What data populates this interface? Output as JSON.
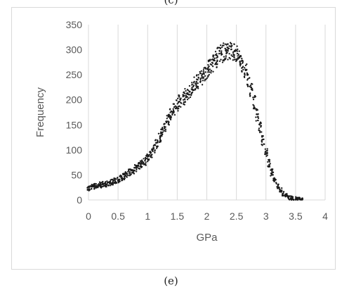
{
  "captions": {
    "top": "(c)",
    "bottom": "(e)"
  },
  "chart_data": {
    "type": "scatter",
    "title": "",
    "xlabel": "GPa",
    "ylabel": "Frequency",
    "xlim": [
      0,
      4
    ],
    "ylim": [
      0,
      350
    ],
    "xticks": [
      0,
      0.5,
      1,
      1.5,
      2,
      2.5,
      3,
      3.5,
      4
    ],
    "xtick_labels": [
      "0",
      "0.5",
      "1",
      "1.5",
      "2",
      "2.5",
      "3",
      "3.5",
      "4"
    ],
    "yticks": [
      0,
      50,
      100,
      150,
      200,
      250,
      300,
      350
    ],
    "ytick_labels": [
      "0",
      "50",
      "100",
      "150",
      "200",
      "250",
      "300",
      "350"
    ],
    "grid": "vertical",
    "legend": "none",
    "marker_color": "#1a1a1a",
    "gridline_color": "#d9d9d9",
    "series": [
      {
        "points": [
          [
            0.0,
            24
          ],
          [
            0.05,
            26
          ],
          [
            0.1,
            27
          ],
          [
            0.15,
            29
          ],
          [
            0.2,
            30
          ],
          [
            0.25,
            31
          ],
          [
            0.3,
            32
          ],
          [
            0.35,
            34
          ],
          [
            0.4,
            36
          ],
          [
            0.45,
            38
          ],
          [
            0.5,
            40
          ],
          [
            0.55,
            43
          ],
          [
            0.6,
            47
          ],
          [
            0.65,
            51
          ],
          [
            0.7,
            55
          ],
          [
            0.75,
            59
          ],
          [
            0.8,
            63
          ],
          [
            0.85,
            67
          ],
          [
            0.9,
            72
          ],
          [
            0.95,
            77
          ],
          [
            1.0,
            85
          ],
          [
            1.05,
            93
          ],
          [
            1.1,
            102
          ],
          [
            1.15,
            112
          ],
          [
            1.2,
            123
          ],
          [
            1.25,
            135
          ],
          [
            1.3,
            147
          ],
          [
            1.35,
            159
          ],
          [
            1.4,
            170
          ],
          [
            1.45,
            180
          ],
          [
            1.5,
            190
          ],
          [
            1.55,
            197
          ],
          [
            1.6,
            203
          ],
          [
            1.65,
            209
          ],
          [
            1.7,
            215
          ],
          [
            1.75,
            222
          ],
          [
            1.8,
            230
          ],
          [
            1.85,
            237
          ],
          [
            1.9,
            244
          ],
          [
            1.95,
            250
          ],
          [
            2.0,
            256
          ],
          [
            2.05,
            264
          ],
          [
            2.1,
            272
          ],
          [
            2.15,
            280
          ],
          [
            2.2,
            287
          ],
          [
            2.25,
            292
          ],
          [
            2.3,
            296
          ],
          [
            2.35,
            297
          ],
          [
            2.4,
            296
          ],
          [
            2.45,
            294
          ],
          [
            2.5,
            290
          ],
          [
            2.55,
            282
          ],
          [
            2.6,
            270
          ],
          [
            2.65,
            255
          ],
          [
            2.7,
            238
          ],
          [
            2.75,
            218
          ],
          [
            2.8,
            195
          ],
          [
            2.85,
            170
          ],
          [
            2.9,
            145
          ],
          [
            2.95,
            118
          ],
          [
            3.0,
            95
          ],
          [
            3.05,
            73
          ],
          [
            3.1,
            55
          ],
          [
            3.15,
            40
          ],
          [
            3.2,
            28
          ],
          [
            3.25,
            19
          ],
          [
            3.3,
            12
          ],
          [
            3.35,
            8
          ],
          [
            3.4,
            5
          ],
          [
            3.45,
            3
          ],
          [
            3.5,
            2
          ],
          [
            3.55,
            1
          ],
          [
            3.6,
            0
          ]
        ]
      }
    ]
  }
}
